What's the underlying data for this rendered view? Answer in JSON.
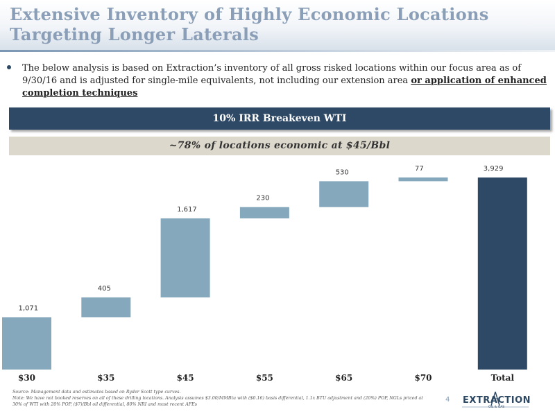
{
  "header": {
    "title": "Extensive Inventory of Highly Economic Locations Targeting Longer Laterals"
  },
  "bullet": {
    "text": "The below analysis is based on Extraction’s inventory of all gross risked locations within our focus area as of 9/30/16 and is adjusted for single-mile equivalents, not including our extension area ",
    "emphasis": "or application of enhanced completion techniques"
  },
  "irr_banner": "10% IRR Breakeven WTI",
  "econ_banner": "~78% of locations economic at $45/Bbl",
  "chart_data": {
    "type": "bar",
    "subtype": "waterfall",
    "categories": [
      "$30",
      "$35",
      "$45",
      "$55",
      "$65",
      "$70",
      "Total"
    ],
    "values": [
      1071,
      405,
      1617,
      230,
      530,
      77,
      3929
    ],
    "value_labels": [
      "1,071",
      "405",
      "1,617",
      "230",
      "530",
      "77",
      "3,929"
    ],
    "ylim": [
      0,
      4000
    ],
    "colors": {
      "increment": "#86a8bd",
      "total": "#2e4966"
    },
    "grid": false,
    "legend": "none"
  },
  "footnote": {
    "source": "Source: Management data and estimates based on Ryder Scott type curves.",
    "note": "Note:     We have not booked reserves on all of these drilling locations. Analysis assumes $3.00/MMBtu with ($0.16) basis differential, 1.1x BTU adjustment and (20%) POP, NGLs priced at 30% of WTI with 20% POP, ($7)/Bbl oil differential, 80% NRI and most recent AFEs"
  },
  "page_number": "4",
  "logo": {
    "word": "EXTRACTION",
    "sub": "OIL & GAS"
  }
}
